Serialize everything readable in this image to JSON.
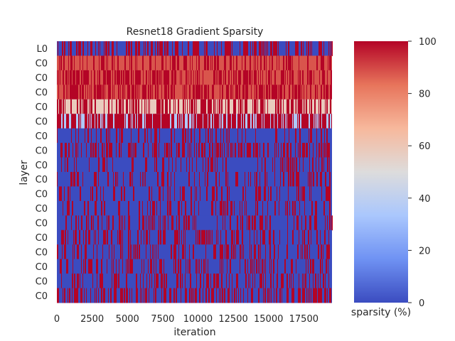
{
  "chart_data": {
    "type": "heatmap",
    "title": "Resnet18 Gradient Sparsity",
    "xlabel": "iteration",
    "ylabel": "layer",
    "row_labels": [
      "L0",
      "C0",
      "C0",
      "C0",
      "C0",
      "C0",
      "C0",
      "C0",
      "C0",
      "C0",
      "C0",
      "C0",
      "C0",
      "C0",
      "C0",
      "C0",
      "C0",
      "C0"
    ],
    "x_ticks": [
      0,
      2500,
      5000,
      7500,
      10000,
      12500,
      15000,
      17500
    ],
    "xlim": [
      0,
      19500
    ],
    "colorbar": {
      "label": "sparsity (%)",
      "range": [
        0,
        100
      ],
      "ticks": [
        0,
        20,
        40,
        60,
        80,
        100
      ],
      "colormap": "coolwarm",
      "stops": [
        "#3b4cc0",
        "#6f92f3",
        "#aac7fd",
        "#dddcdc",
        "#f7b89c",
        "#e7745b",
        "#b40426"
      ]
    },
    "rows": [
      {
        "base": 0,
        "spike": 100,
        "spike_density": 0.35
      },
      {
        "base": 88,
        "spike": 100,
        "spike_density": 0.3
      },
      {
        "base": 88,
        "spike": 100,
        "spike_density": 0.45
      },
      {
        "base": 88,
        "spike": 100,
        "spike_density": 0.45
      },
      {
        "base": 58,
        "spike": 100,
        "spike_density": 0.4
      },
      {
        "base": 35,
        "spike": 100,
        "spike_density": 0.6
      },
      {
        "base": 0,
        "spike": 100,
        "spike_density": 0.15
      },
      {
        "base": 0,
        "spike": 100,
        "spike_density": 0.35
      },
      {
        "base": 0,
        "spike": 100,
        "spike_density": 0.2
      },
      {
        "base": 0,
        "spike": 100,
        "spike_density": 0.2
      },
      {
        "base": 0,
        "spike": 100,
        "spike_density": 0.2
      },
      {
        "base": 0,
        "spike": 100,
        "spike_density": 0.2
      },
      {
        "base": 0,
        "spike": 100,
        "spike_density": 0.2
      },
      {
        "base": 0,
        "spike": 100,
        "spike_density": 0.25
      },
      {
        "base": 0,
        "spike": 100,
        "spike_density": 0.25
      },
      {
        "base": 0,
        "spike": 100,
        "spike_density": 0.25
      },
      {
        "base": 0,
        "spike": 100,
        "spike_density": 0.25
      },
      {
        "base": 0,
        "spike": 100,
        "spike_density": 0.3
      }
    ]
  }
}
